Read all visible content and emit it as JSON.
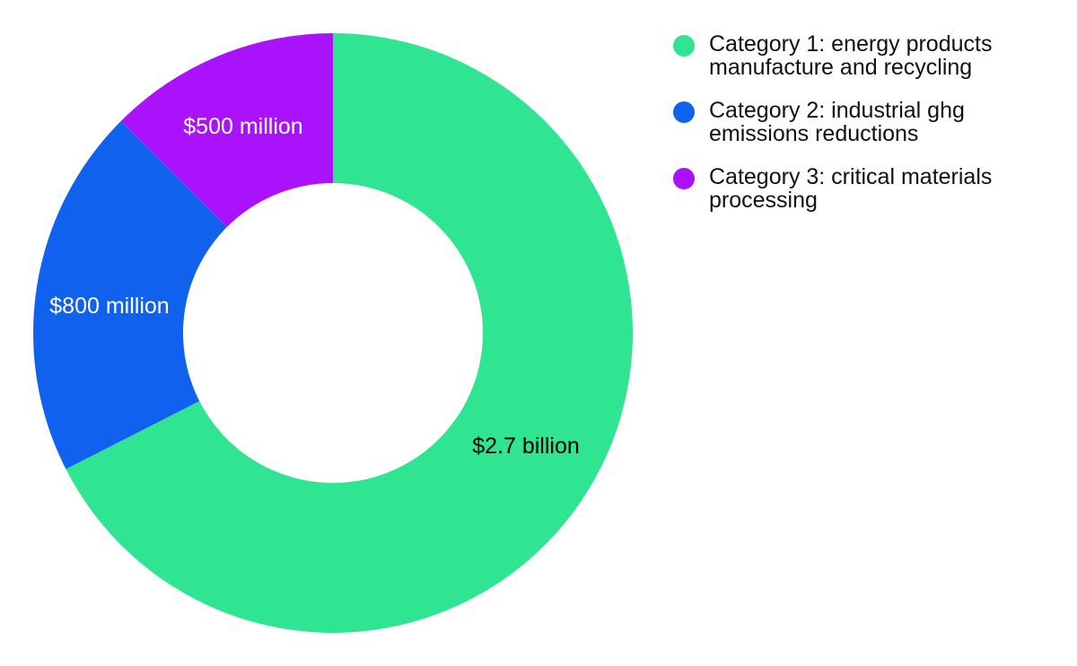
{
  "chart_data": {
    "type": "pie",
    "variant": "donut",
    "title": "",
    "categories": [
      "Category 1: energy products manufacture and recycling",
      "Category 2: industrial ghg emissions reductions",
      "Category 3: critical materials processing"
    ],
    "values": [
      2700,
      800,
      500
    ],
    "unit": "USD millions",
    "labels": [
      "$2.7 billion",
      "$800 million",
      "$500 million"
    ],
    "colors": [
      "#2fe591",
      "#1062ee",
      "#aa12fb"
    ],
    "label_colors": [
      "#000000",
      "#ffffff",
      "#ffffff"
    ],
    "legend_position": "right"
  },
  "legend": {
    "items": [
      {
        "label": "Category 1: energy products manufacture and recycling",
        "color": "#2fe591"
      },
      {
        "label": "Category 2: industrial ghg emissions reductions",
        "color": "#1062ee"
      },
      {
        "label": "Category 3: critical materials processing",
        "color": "#aa12fb"
      }
    ]
  }
}
